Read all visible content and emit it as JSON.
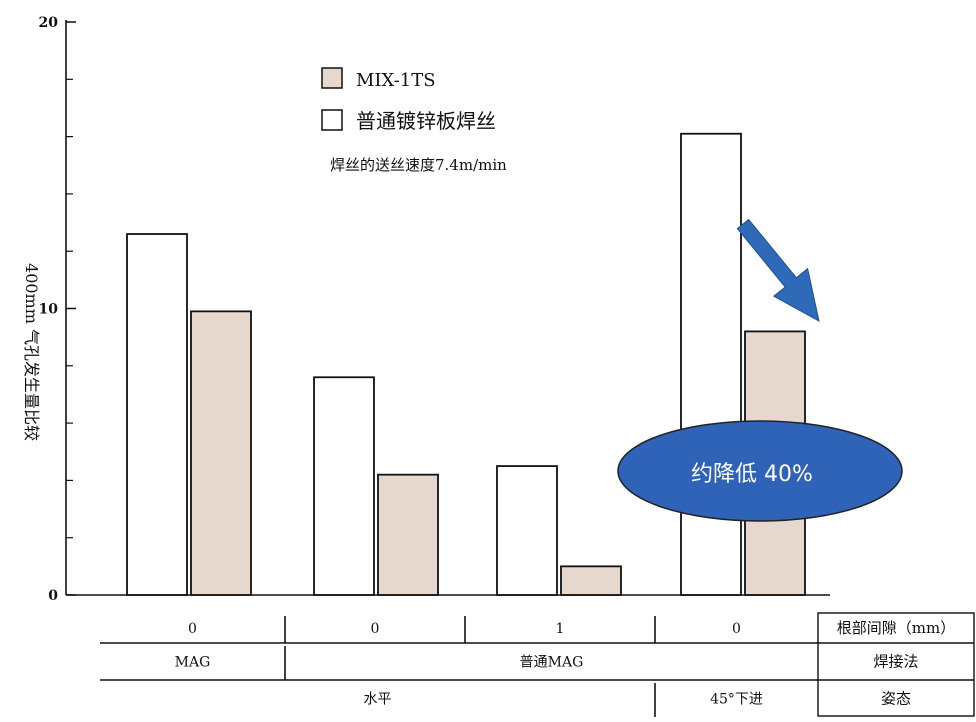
{
  "chart_data": {
    "type": "bar",
    "ylabel": "400mm 气孔发生量比较",
    "ylim": [
      0,
      20
    ],
    "yticks": [
      0,
      10,
      20
    ],
    "minor_ticks": [
      2,
      4,
      6,
      8,
      12,
      14,
      16,
      18
    ],
    "categories": [
      "0",
      "0",
      "1",
      "0"
    ],
    "series": [
      {
        "name": "MIX-1TS",
        "color": "#e7d8ce",
        "values": [
          9.9,
          4.2,
          1.0,
          9.2
        ]
      },
      {
        "name": "普通镀锌板焊丝",
        "color": "#ffffff",
        "values": [
          12.6,
          7.6,
          4.5,
          16.1
        ]
      }
    ],
    "annotation": "焊丝的送丝速度7.4m/min",
    "callout": {
      "text": "约降低 40%",
      "color": "#2f63b8"
    },
    "arrow_color": "#2e6ab7"
  },
  "table": {
    "rows": [
      {
        "label": "根部间隙（mm）",
        "cells": [
          {
            "text": "0",
            "span": 1
          },
          {
            "text": "0",
            "span": 1
          },
          {
            "text": "1",
            "span": 1
          },
          {
            "text": "0",
            "span": 1
          }
        ]
      },
      {
        "label": "焊接法",
        "cells": [
          {
            "text": "MAG",
            "span": 1
          },
          {
            "text": "普通MAG",
            "span": 3
          }
        ]
      },
      {
        "label": "姿态",
        "cells": [
          {
            "text": "水平",
            "span": 3
          },
          {
            "text": "45°下进",
            "span": 1
          }
        ]
      }
    ]
  }
}
